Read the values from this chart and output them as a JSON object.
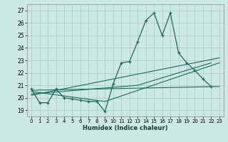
{
  "title": "",
  "xlabel": "Humidex (Indice chaleur)",
  "bg_color": "#cce8e4",
  "grid_color": "#b0c8c4",
  "line_color": "#1a6b5a",
  "xlim": [
    -0.5,
    23.5
  ],
  "ylim": [
    18.5,
    27.5
  ],
  "yticks": [
    19,
    20,
    21,
    22,
    23,
    24,
    25,
    26,
    27
  ],
  "xticks": [
    0,
    1,
    2,
    3,
    4,
    5,
    6,
    7,
    8,
    9,
    10,
    11,
    12,
    13,
    14,
    15,
    16,
    17,
    18,
    19,
    20,
    21,
    22,
    23
  ],
  "series1_x": [
    0,
    1,
    2,
    3,
    4,
    5,
    6,
    7,
    8,
    9,
    10,
    11,
    12,
    13,
    14,
    15,
    16,
    17,
    18,
    19,
    20,
    21,
    22
  ],
  "series1_y": [
    20.7,
    19.6,
    19.6,
    20.7,
    20.0,
    19.9,
    19.8,
    19.7,
    19.7,
    18.9,
    21.1,
    22.8,
    22.9,
    24.5,
    26.2,
    26.8,
    25.0,
    26.8,
    23.6,
    22.8,
    22.2,
    21.5,
    20.9
  ],
  "series2_x": [
    0,
    23
  ],
  "series2_y": [
    20.6,
    20.9
  ],
  "series3_x": [
    0,
    23
  ],
  "series3_y": [
    20.2,
    23.2
  ],
  "series4_x": [
    0,
    9,
    23
  ],
  "series4_y": [
    20.5,
    19.7,
    22.8
  ],
  "series5_x": [
    0,
    13,
    22
  ],
  "series5_y": [
    20.3,
    21.0,
    22.8
  ]
}
